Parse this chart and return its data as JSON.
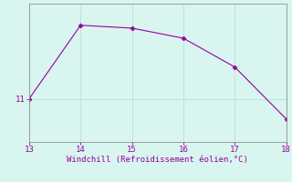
{
  "x": [
    13,
    14,
    15,
    16,
    17,
    18
  ],
  "y": [
    11.0,
    13.55,
    13.45,
    13.1,
    12.1,
    10.3
  ],
  "line_color": "#990099",
  "marker": "D",
  "marker_size": 2.5,
  "bg_color": "#d8f5f0",
  "grid_color": "#b8e0dc",
  "xlabel": "Windchill (Refroidissement éolien,°C)",
  "xlabel_color": "#990099",
  "xlabel_fontsize": 6.5,
  "tick_color": "#990099",
  "tick_fontsize": 6.5,
  "ytick_labels": [
    "11"
  ],
  "ytick_values": [
    11
  ],
  "xlim": [
    13,
    18
  ],
  "ylim": [
    9.5,
    14.3
  ],
  "line_width": 0.8
}
